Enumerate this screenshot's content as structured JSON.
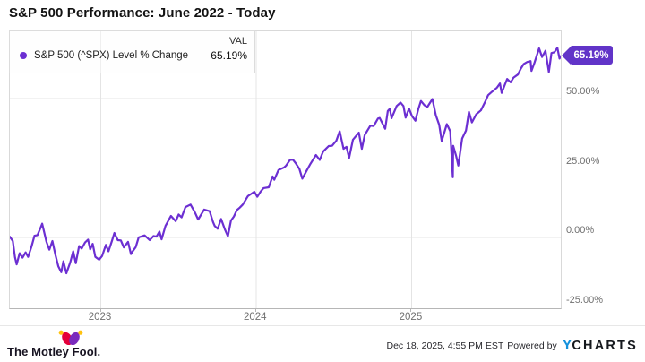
{
  "title": "S&P 500 Performance: June 2022 - Today",
  "legend": {
    "val_header": "VAL",
    "series_label": "S&P 500 (^SPX) Level % Change",
    "value": "65.19%"
  },
  "badge": {
    "label": "65.19%"
  },
  "chart_data": {
    "type": "line",
    "title": "S&P 500 Performance: June 2022 - Today",
    "ylabel": "Level % Change",
    "x_range": [
      "2022-06-01",
      "2025-12-18"
    ],
    "ylim": [
      -25.35,
      74.1
    ],
    "grid": true,
    "legend_position": "top-left",
    "last_value_label": "65.19%",
    "y_ticks": [
      {
        "value": 50,
        "label": "50.00%"
      },
      {
        "value": 25,
        "label": "25.00%"
      },
      {
        "value": 0,
        "label": "0.00%"
      },
      {
        "value": -25,
        "label": "-25.00%"
      }
    ],
    "x_ticks": [
      {
        "date": "2023-01-01",
        "label": "2023"
      },
      {
        "date": "2024-01-01",
        "label": "2024"
      },
      {
        "date": "2025-01-01",
        "label": "2025"
      }
    ],
    "series": [
      {
        "name": "S&P 500 (^SPX) Level % Change",
        "color": "#6c2fd2",
        "points": [
          [
            "2022-06-01",
            0.3
          ],
          [
            "2022-06-08",
            -1.2
          ],
          [
            "2022-06-13",
            -7.0
          ],
          [
            "2022-06-17",
            -9.6
          ],
          [
            "2022-06-24",
            -5.6
          ],
          [
            "2022-07-01",
            -7.2
          ],
          [
            "2022-07-08",
            -5.3
          ],
          [
            "2022-07-14",
            -6.9
          ],
          [
            "2022-07-22",
            -3.2
          ],
          [
            "2022-07-29",
            0.7
          ],
          [
            "2022-08-05",
            0.9
          ],
          [
            "2022-08-12",
            3.5
          ],
          [
            "2022-08-16",
            5.0
          ],
          [
            "2022-08-26",
            -1.4
          ],
          [
            "2022-09-02",
            -4.3
          ],
          [
            "2022-09-09",
            -1.2
          ],
          [
            "2022-09-16",
            -6.1
          ],
          [
            "2022-09-23",
            -10.3
          ],
          [
            "2022-09-30",
            -12.4
          ],
          [
            "2022-10-05",
            -8.5
          ],
          [
            "2022-10-12",
            -12.8
          ],
          [
            "2022-10-21",
            -8.9
          ],
          [
            "2022-10-28",
            -4.9
          ],
          [
            "2022-11-03",
            -9.2
          ],
          [
            "2022-11-11",
            -3.0
          ],
          [
            "2022-11-17",
            -3.9
          ],
          [
            "2022-11-25",
            -1.7
          ],
          [
            "2022-12-02",
            -0.7
          ],
          [
            "2022-12-07",
            -4.2
          ],
          [
            "2022-12-13",
            -2.2
          ],
          [
            "2022-12-19",
            -6.9
          ],
          [
            "2022-12-28",
            -7.9
          ],
          [
            "2023-01-04",
            -6.6
          ],
          [
            "2023-01-13",
            -2.6
          ],
          [
            "2023-01-19",
            -4.9
          ],
          [
            "2023-01-27",
            -1.2
          ],
          [
            "2023-02-02",
            1.7
          ],
          [
            "2023-02-10",
            -0.9
          ],
          [
            "2023-02-17",
            -1.0
          ],
          [
            "2023-02-24",
            -3.5
          ],
          [
            "2023-03-06",
            -1.5
          ],
          [
            "2023-03-13",
            -5.9
          ],
          [
            "2023-03-17",
            -4.9
          ],
          [
            "2023-03-24",
            -3.4
          ],
          [
            "2023-03-31",
            0.1
          ],
          [
            "2023-04-14",
            0.8
          ],
          [
            "2023-04-26",
            -0.9
          ],
          [
            "2023-05-05",
            0.6
          ],
          [
            "2023-05-12",
            0.4
          ],
          [
            "2023-05-19",
            2.2
          ],
          [
            "2023-05-24",
            -0.6
          ],
          [
            "2023-06-02",
            4.2
          ],
          [
            "2023-06-15",
            7.8
          ],
          [
            "2023-06-26",
            5.9
          ],
          [
            "2023-07-03",
            8.3
          ],
          [
            "2023-07-10",
            7.3
          ],
          [
            "2023-07-19",
            11.0
          ],
          [
            "2023-07-31",
            11.9
          ],
          [
            "2023-08-10",
            9.2
          ],
          [
            "2023-08-18",
            6.5
          ],
          [
            "2023-09-01",
            10.1
          ],
          [
            "2023-09-14",
            9.5
          ],
          [
            "2023-09-22",
            5.6
          ],
          [
            "2023-09-26",
            4.2
          ],
          [
            "2023-10-03",
            3.2
          ],
          [
            "2023-10-11",
            6.7
          ],
          [
            "2023-10-20",
            2.9
          ],
          [
            "2023-10-27",
            0.5
          ],
          [
            "2023-11-03",
            6.1
          ],
          [
            "2023-11-10",
            7.6
          ],
          [
            "2023-11-17",
            9.9
          ],
          [
            "2023-11-24",
            10.8
          ],
          [
            "2023-12-01",
            11.9
          ],
          [
            "2023-12-13",
            14.9
          ],
          [
            "2023-12-28",
            16.5
          ],
          [
            "2024-01-04",
            14.7
          ],
          [
            "2024-01-12",
            16.6
          ],
          [
            "2024-01-19",
            17.8
          ],
          [
            "2024-01-31",
            18.1
          ],
          [
            "2024-02-09",
            22.0
          ],
          [
            "2024-02-13",
            20.8
          ],
          [
            "2024-02-23",
            24.3
          ],
          [
            "2024-03-07",
            25.2
          ],
          [
            "2024-03-12",
            25.9
          ],
          [
            "2024-03-21",
            27.9
          ],
          [
            "2024-03-28",
            28.0
          ],
          [
            "2024-04-04",
            26.6
          ],
          [
            "2024-04-12",
            24.7
          ],
          [
            "2024-04-19",
            21.2
          ],
          [
            "2024-04-29",
            24.0
          ],
          [
            "2024-05-08",
            26.5
          ],
          [
            "2024-05-21",
            29.7
          ],
          [
            "2024-05-30",
            27.9
          ],
          [
            "2024-06-07",
            30.9
          ],
          [
            "2024-06-20",
            32.9
          ],
          [
            "2024-06-28",
            33.0
          ],
          [
            "2024-07-08",
            34.8
          ],
          [
            "2024-07-16",
            38.2
          ],
          [
            "2024-07-25",
            31.9
          ],
          [
            "2024-08-01",
            32.6
          ],
          [
            "2024-08-07",
            28.6
          ],
          [
            "2024-08-16",
            35.2
          ],
          [
            "2024-08-30",
            37.7
          ],
          [
            "2024-09-06",
            31.9
          ],
          [
            "2024-09-13",
            36.9
          ],
          [
            "2024-09-26",
            40.2
          ],
          [
            "2024-10-04",
            40.1
          ],
          [
            "2024-10-14",
            42.8
          ],
          [
            "2024-10-18",
            43.0
          ],
          [
            "2024-10-31",
            39.1
          ],
          [
            "2024-11-06",
            45.5
          ],
          [
            "2024-11-11",
            46.3
          ],
          [
            "2024-11-15",
            42.9
          ],
          [
            "2024-11-27",
            47.3
          ],
          [
            "2024-12-06",
            48.5
          ],
          [
            "2024-12-13",
            47.3
          ],
          [
            "2024-12-18",
            43.1
          ],
          [
            "2024-12-26",
            46.4
          ],
          [
            "2025-01-02",
            43.7
          ],
          [
            "2025-01-10",
            42.0
          ],
          [
            "2025-01-17",
            46.2
          ],
          [
            "2025-01-23",
            49.1
          ],
          [
            "2025-01-31",
            47.6
          ],
          [
            "2025-02-07",
            46.9
          ],
          [
            "2025-02-19",
            49.8
          ],
          [
            "2025-02-27",
            44.0
          ],
          [
            "2025-03-07",
            40.5
          ],
          [
            "2025-03-13",
            34.7
          ],
          [
            "2025-03-25",
            40.8
          ],
          [
            "2025-04-02",
            38.2
          ],
          [
            "2025-04-08",
            21.7
          ],
          [
            "2025-04-09",
            33.0
          ],
          [
            "2025-04-16",
            29.2
          ],
          [
            "2025-04-21",
            25.9
          ],
          [
            "2025-04-30",
            35.6
          ],
          [
            "2025-05-09",
            38.5
          ],
          [
            "2025-05-16",
            45.2
          ],
          [
            "2025-05-23",
            41.4
          ],
          [
            "2025-06-02",
            44.3
          ],
          [
            "2025-06-13",
            45.7
          ],
          [
            "2025-06-24",
            49.1
          ],
          [
            "2025-06-30",
            51.2
          ],
          [
            "2025-07-10",
            52.5
          ],
          [
            "2025-07-21",
            53.9
          ],
          [
            "2025-07-28",
            55.4
          ],
          [
            "2025-08-01",
            52.0
          ],
          [
            "2025-08-08",
            54.8
          ],
          [
            "2025-08-14",
            57.0
          ],
          [
            "2025-08-22",
            55.8
          ],
          [
            "2025-08-29",
            57.5
          ],
          [
            "2025-09-08",
            58.6
          ],
          [
            "2025-09-15",
            60.7
          ],
          [
            "2025-09-22",
            62.4
          ],
          [
            "2025-09-30",
            63.1
          ],
          [
            "2025-10-08",
            63.4
          ],
          [
            "2025-10-10",
            59.9
          ],
          [
            "2025-10-17",
            62.8
          ],
          [
            "2025-10-28",
            68.0
          ],
          [
            "2025-11-04",
            64.9
          ],
          [
            "2025-11-12",
            67.1
          ],
          [
            "2025-11-20",
            59.5
          ],
          [
            "2025-11-26",
            66.3
          ],
          [
            "2025-12-03",
            66.6
          ],
          [
            "2025-12-10",
            68.2
          ],
          [
            "2025-12-15",
            64.3
          ],
          [
            "2025-12-18",
            65.19
          ]
        ]
      }
    ]
  },
  "footer": {
    "brand": "The Motley Fool.",
    "timestamp": "Dec 18, 2025, 4:55 PM EST",
    "powered_by": "Powered by",
    "ycharts_y": "Y",
    "ycharts_rest": "CHARTS"
  },
  "colors": {
    "line": "#6c2fd2",
    "badge": "#6134c8",
    "grid": "#e4e4e4",
    "axis_text": "#6f6f6f",
    "ycharts_blue": "#1591dc",
    "fool_pink": "#e4003a",
    "fool_purple": "#7a2bbd",
    "fool_gold": "#ffc20e"
  }
}
